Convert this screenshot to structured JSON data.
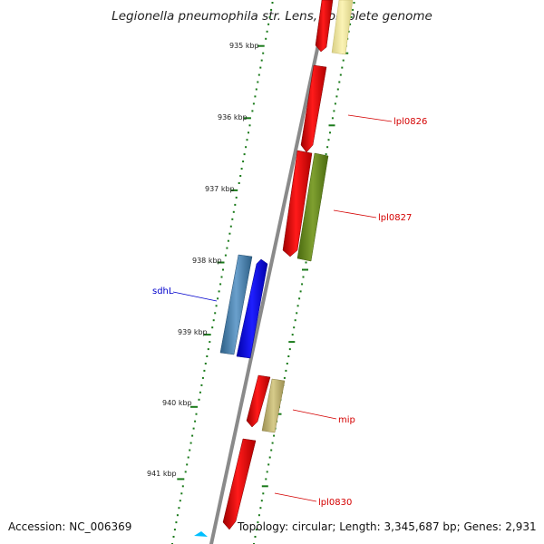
{
  "title": "Legionella pneumophila str. Lens, complete genome",
  "accession": "Accession: NC_006369",
  "summary": "Topology: circular; Length: 3,345,687 bp; Genes: 2,931",
  "ticks": [
    "935 kbp",
    "936 kbp",
    "937 kbp",
    "938 kbp",
    "939 kbp",
    "940 kbp",
    "941 kbp"
  ],
  "gene_labels": [
    {
      "name": "lpl0826",
      "color": "#d40000"
    },
    {
      "name": "lpl0827",
      "color": "#d40000"
    },
    {
      "name": "sdhL",
      "color": "#0000cc"
    },
    {
      "name": "mip",
      "color": "#d40000"
    },
    {
      "name": "lpl0830",
      "color": "#d40000"
    }
  ],
  "colors": {
    "backbone": "#8a8a8a",
    "tick": "#1a7a1a",
    "red_gene": "#ff0000",
    "olive_gene": "#6b8e23",
    "blue_gene": "#0000ff",
    "steel_gene": "#4682b4",
    "tan_gene": "#bdb76b",
    "pale_gene": "#f0e68c",
    "small_marker": "#00bfff"
  }
}
